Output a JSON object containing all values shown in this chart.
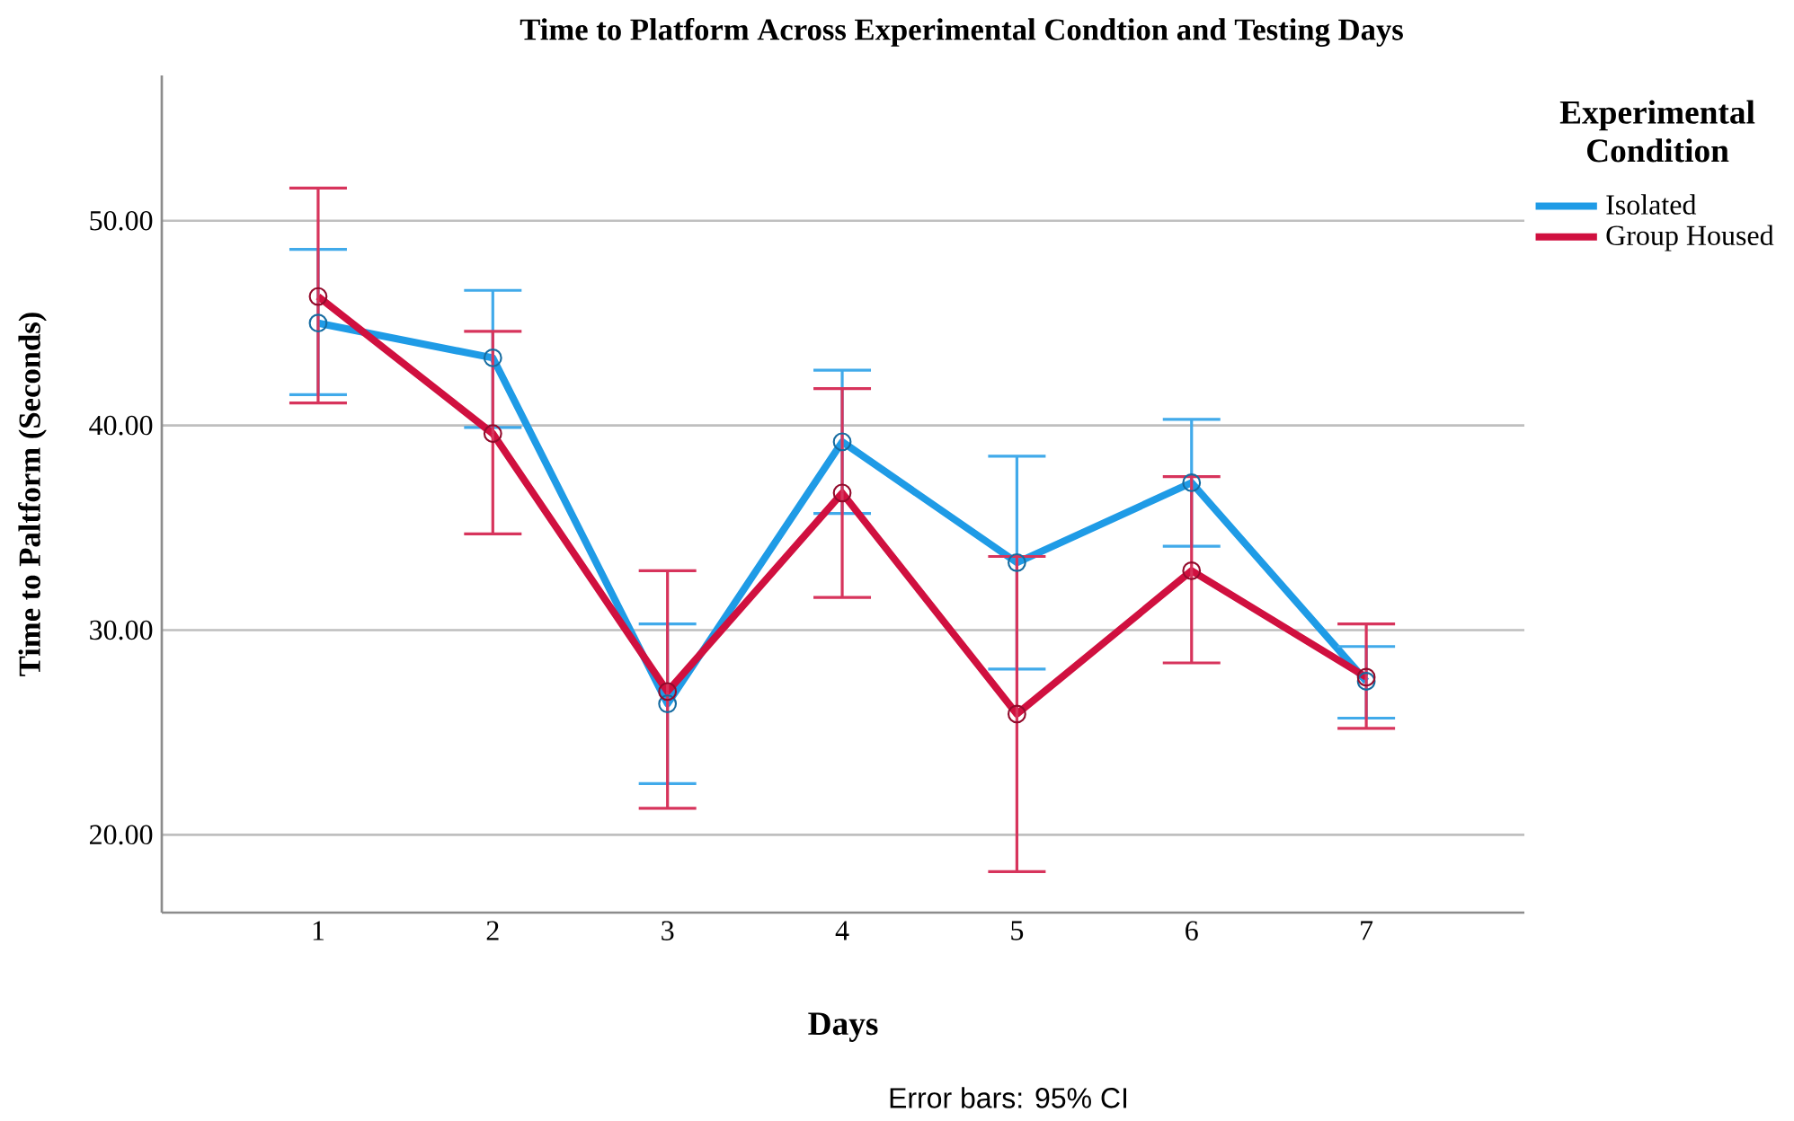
{
  "chart_data": {
    "type": "line",
    "title": "Time to Platform Across Experimental Condtion and Testing Days",
    "xlabel": "Days",
    "ylabel": "Time to Paltform (Seconds)",
    "legend_title": "Experimental Condition",
    "categories": [
      "1",
      "2",
      "3",
      "4",
      "5",
      "6",
      "7"
    ],
    "series": [
      {
        "name": "Isolated",
        "color": "#1f9be6",
        "values": [
          45.0,
          43.3,
          26.4,
          39.2,
          33.3,
          37.2,
          27.5
        ],
        "errors": [
          [
            41.5,
            48.6
          ],
          [
            39.9,
            46.6
          ],
          [
            22.5,
            30.3
          ],
          [
            35.7,
            42.7
          ],
          [
            28.1,
            38.5
          ],
          [
            34.1,
            40.3
          ],
          [
            25.7,
            29.2
          ]
        ]
      },
      {
        "name": "Group Housed",
        "color": "#d0103f",
        "values": [
          46.3,
          39.6,
          27.0,
          36.7,
          25.9,
          32.9,
          27.7
        ],
        "errors": [
          [
            41.1,
            51.6
          ],
          [
            34.7,
            44.6
          ],
          [
            21.3,
            32.9
          ],
          [
            31.6,
            41.8
          ],
          [
            18.2,
            33.6
          ],
          [
            28.4,
            37.5
          ],
          [
            25.2,
            30.3
          ]
        ]
      }
    ],
    "ylim": [
      16.2,
      57.1
    ],
    "yticks": [
      {
        "value": 20,
        "label": "20.00"
      },
      {
        "value": 30,
        "label": "30.00"
      },
      {
        "value": 40,
        "label": "40.00"
      },
      {
        "value": 50,
        "label": "50.00"
      }
    ],
    "grid": "y",
    "legend": "right",
    "marker": "circle",
    "line_style": "solid",
    "annotations": [
      "Error bars: 95% CI"
    ]
  }
}
